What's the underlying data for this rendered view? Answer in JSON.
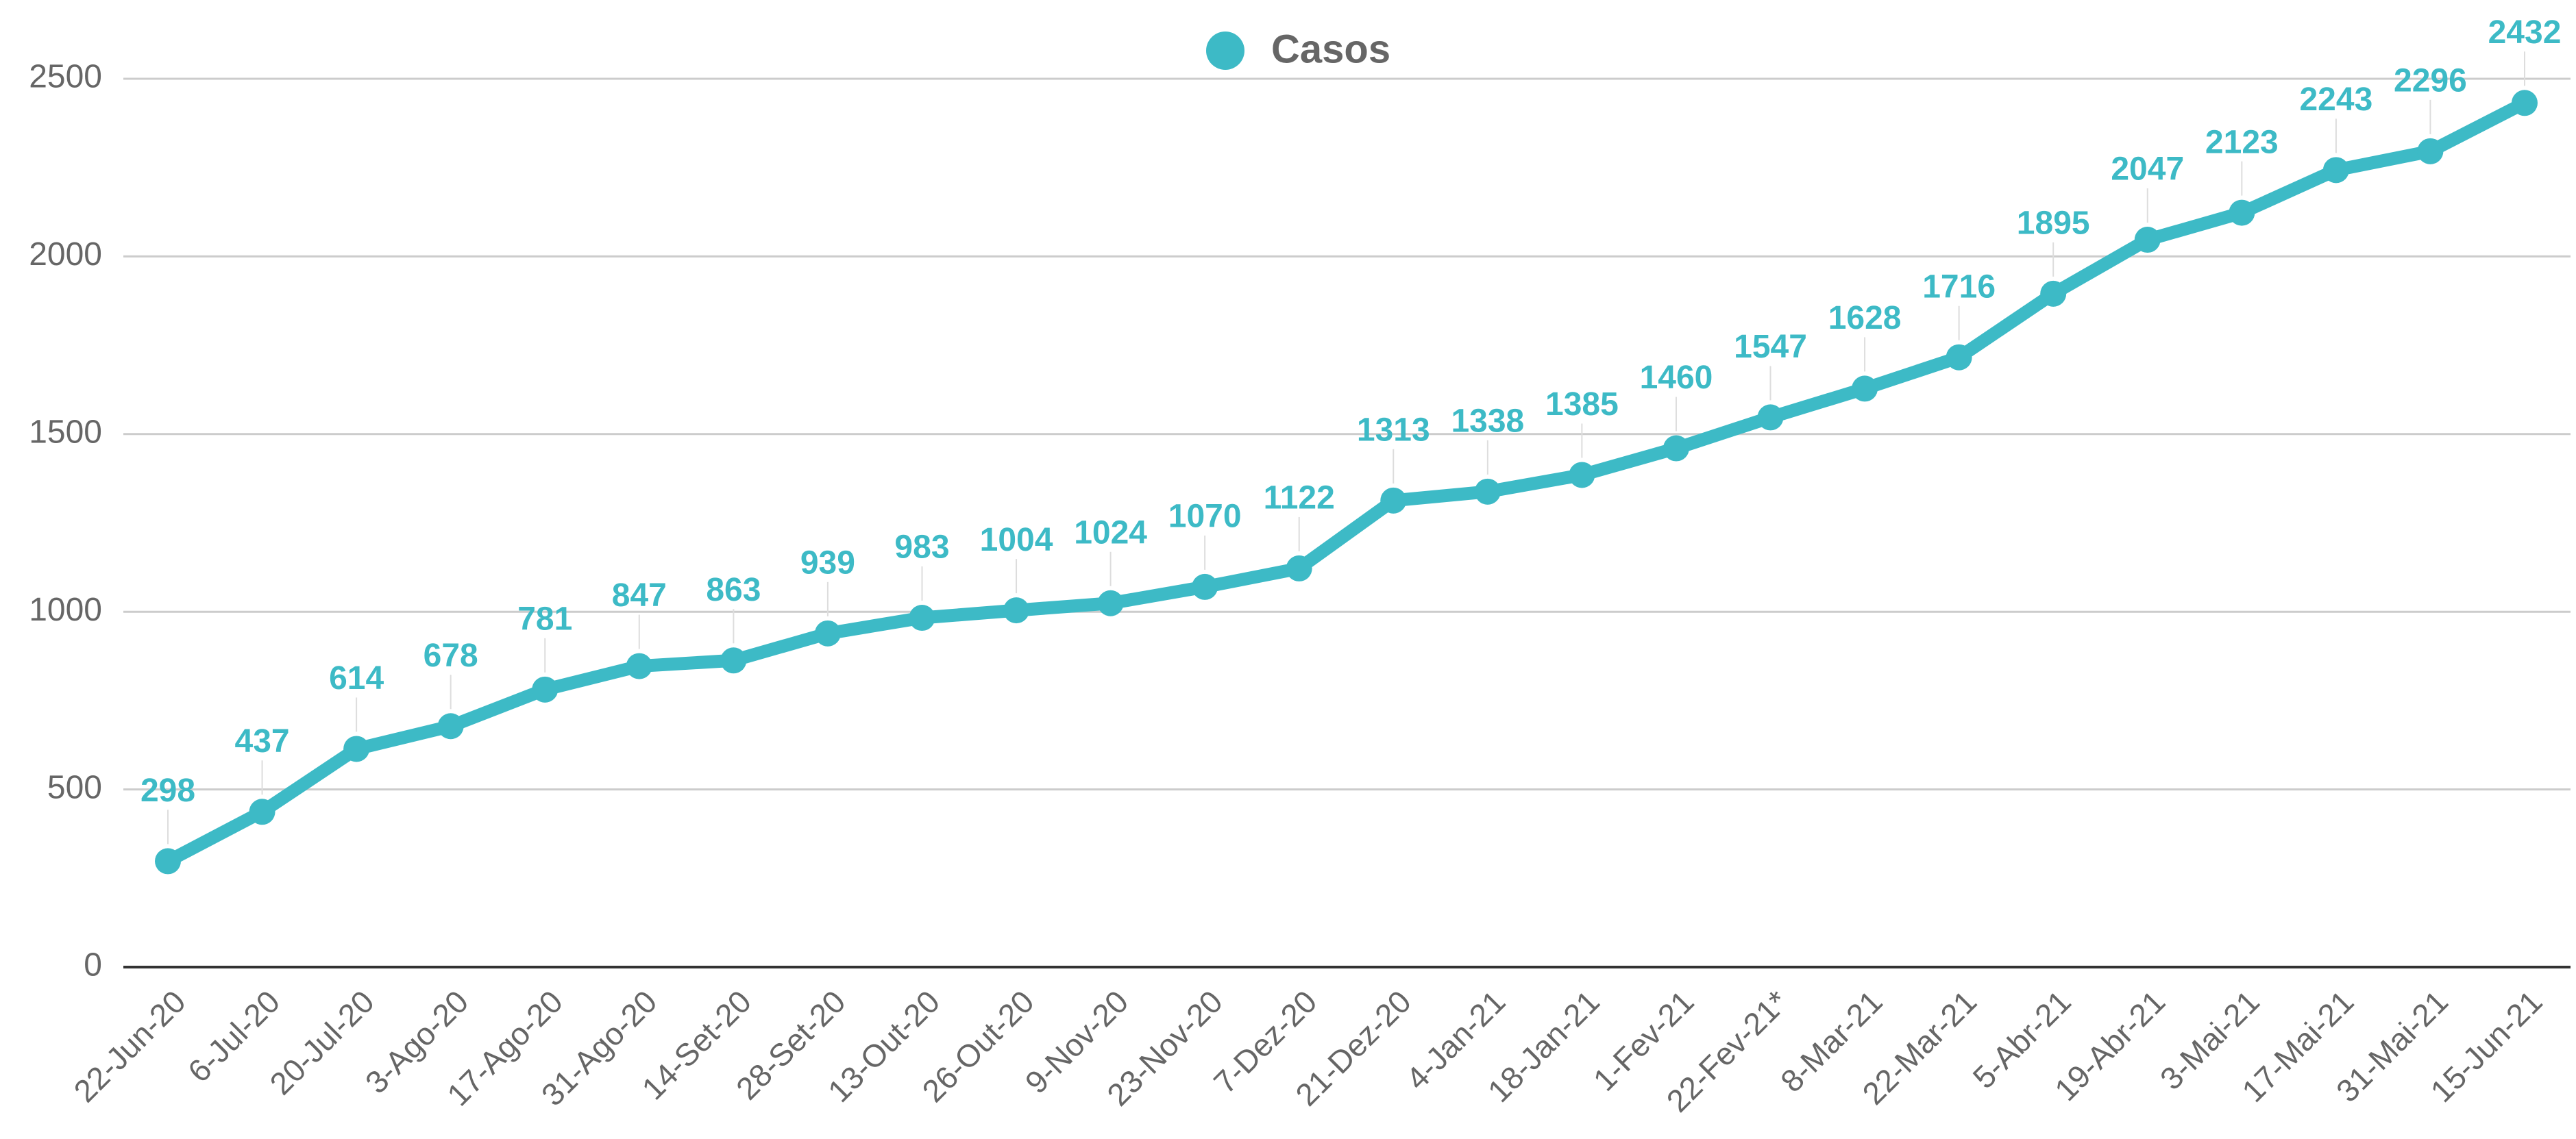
{
  "chart_data": {
    "type": "line",
    "categories": [
      "22-Jun-20",
      "6-Jul-20",
      "20-Jul-20",
      "3-Ago-20",
      "17-Ago-20",
      "31-Ago-20",
      "14-Set-20",
      "28-Set-20",
      "13-Out-20",
      "26-Out-20",
      "9-Nov-20",
      "23-Nov-20",
      "7-Dez-20",
      "21-Dez-20",
      "4-Jan-21",
      "18-Jan-21",
      "1-Fev-21",
      "22-Fev-21*",
      "8-Mar-21",
      "22-Mar-21",
      "5-Abr-21",
      "19-Abr-21",
      "3-Mai-21",
      "17-Mai-21",
      "31-Mai-21",
      "15-Jun-21"
    ],
    "series": [
      {
        "name": "Casos",
        "color": "#3dbac6",
        "values": [
          298,
          437,
          614,
          678,
          781,
          847,
          863,
          939,
          983,
          1004,
          1024,
          1070,
          1122,
          1313,
          1338,
          1385,
          1460,
          1547,
          1628,
          1716,
          1895,
          2047,
          2123,
          2243,
          2296,
          2432
        ]
      }
    ],
    "ylim": [
      0,
      2500
    ],
    "yticks": [
      0,
      500,
      1000,
      1500,
      2000,
      2500
    ],
    "grid": true,
    "legend": "top"
  }
}
